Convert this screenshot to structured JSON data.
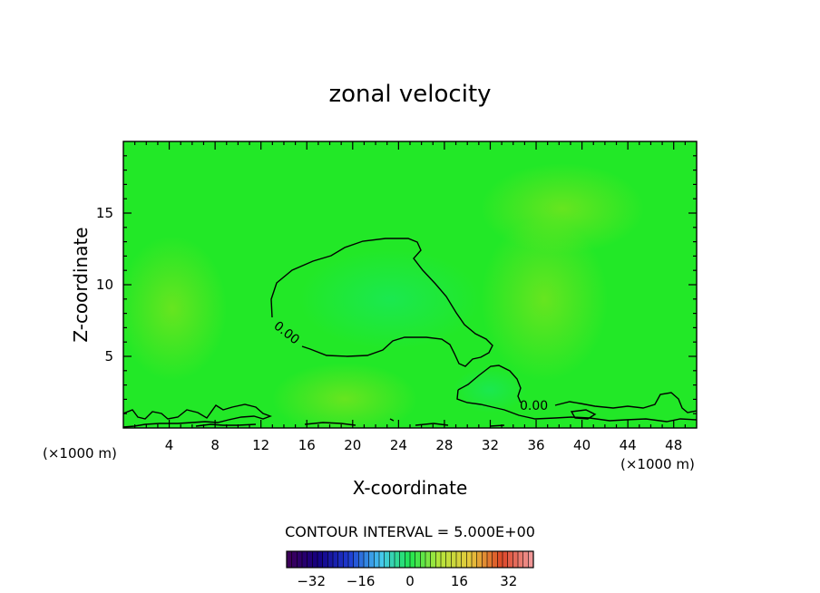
{
  "chart_data": {
    "type": "heatmap",
    "title": "zonal velocity",
    "xlabel": "X-coordinate",
    "ylabel": "Z-coordinate",
    "x_unit": "(×1000 m)",
    "y_unit": "(×1000 m)",
    "xlim": [
      0,
      50
    ],
    "ylim": [
      0,
      20
    ],
    "x_ticks": [
      4,
      8,
      12,
      16,
      20,
      24,
      28,
      32,
      36,
      40,
      44,
      48
    ],
    "y_ticks": [
      5,
      10,
      15
    ],
    "contour_interval_text": "CONTOUR INTERVAL = 5.000E+00",
    "contour_labels": [
      "0.00",
      "0.00"
    ],
    "colorbar": {
      "min": -40,
      "max": 40,
      "ticks": [
        -32,
        -16,
        0,
        16,
        32
      ]
    },
    "colors": {
      "field_base": "#22e827",
      "contour_line": "#000000"
    }
  }
}
